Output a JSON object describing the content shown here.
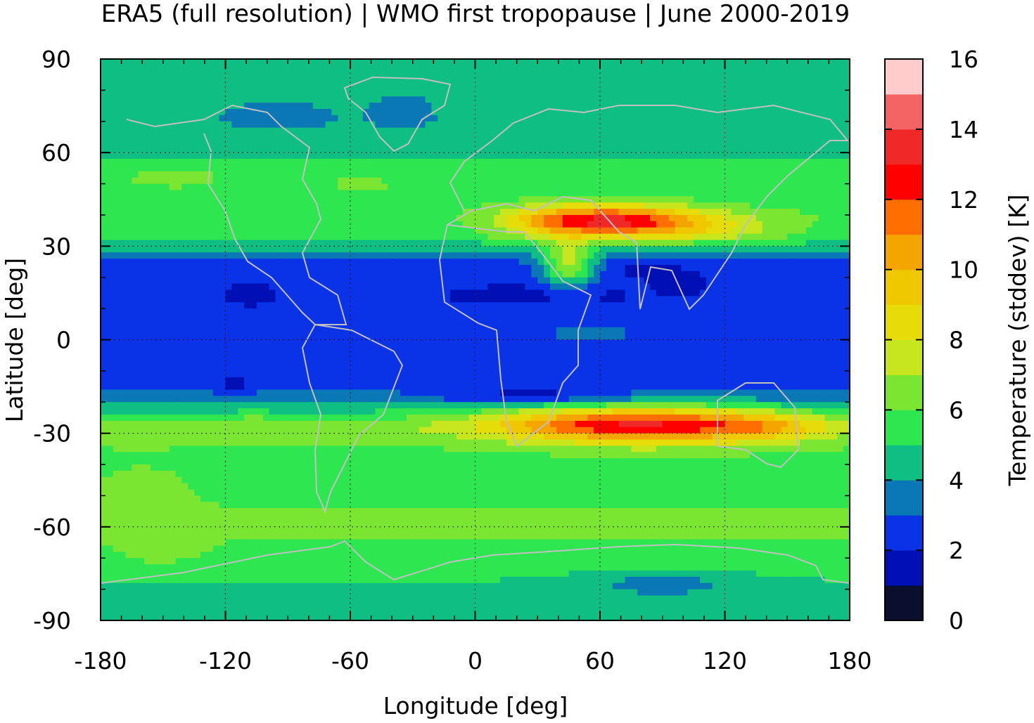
{
  "chart_data": {
    "type": "heatmap",
    "title": "ERA5 (full resolution) | WMO first tropopause | June 2000-2019",
    "xlabel": "Longitude [deg]",
    "ylabel": "Latitude [deg]",
    "colorbar_label": "Temperature (stddev) [K]",
    "xlim": [
      -180,
      180
    ],
    "ylim": [
      -90,
      90
    ],
    "x_ticks": [
      -180,
      -120,
      -60,
      0,
      60,
      120,
      180
    ],
    "y_ticks": [
      90,
      60,
      30,
      0,
      -30,
      -60,
      -90
    ],
    "colorbar_range": [
      0,
      16
    ],
    "colorbar_ticks": [
      0,
      2,
      4,
      6,
      8,
      10,
      12,
      14,
      16
    ],
    "grid": true,
    "colorbar_placement": "right",
    "coastlines_color": "#c0c0c0",
    "levels": [
      {
        "min": 0,
        "max": 1,
        "color": "#0b0f2e"
      },
      {
        "min": 1,
        "max": 2,
        "color": "#0010b4"
      },
      {
        "min": 2,
        "max": 3,
        "color": "#0a32e6"
      },
      {
        "min": 3,
        "max": 4,
        "color": "#0a78b4"
      },
      {
        "min": 4,
        "max": 5,
        "color": "#0fbe82"
      },
      {
        "min": 5,
        "max": 6,
        "color": "#2ee650"
      },
      {
        "min": 6,
        "max": 7,
        "color": "#7ae632"
      },
      {
        "min": 7,
        "max": 8,
        "color": "#c8e61e"
      },
      {
        "min": 8,
        "max": 9,
        "color": "#e6dc0a"
      },
      {
        "min": 9,
        "max": 10,
        "color": "#f0c800"
      },
      {
        "min": 10,
        "max": 11,
        "color": "#f5a500"
      },
      {
        "min": 11,
        "max": 12,
        "color": "#ff6e00"
      },
      {
        "min": 12,
        "max": 13,
        "color": "#ff0000"
      },
      {
        "min": 13,
        "max": 14,
        "color": "#f02828"
      },
      {
        "min": 14,
        "max": 15,
        "color": "#f56464"
      },
      {
        "min": 15,
        "max": 16,
        "color": "#ffcccc"
      }
    ],
    "zonal_profile": {
      "lat": [
        -90,
        -82,
        -75,
        -68,
        -60,
        -50,
        -40,
        -32,
        -28,
        -24,
        -20,
        -12,
        -5,
        0,
        5,
        12,
        18,
        24,
        28,
        33,
        40,
        48,
        55,
        62,
        70,
        80,
        90
      ],
      "value": [
        4.5,
        4.6,
        5.2,
        5.6,
        6.3,
        5.8,
        5.5,
        6.1,
        6.8,
        5.4,
        3.6,
        2.4,
        2.2,
        2.3,
        2.2,
        2.1,
        2.3,
        2.6,
        3.8,
        5.6,
        5.9,
        5.4,
        5.2,
        4.7,
        4.3,
        4.6,
        4.7
      ]
    },
    "anomalies": [
      {
        "lon": 88,
        "lat": -27,
        "peak": 12.5,
        "dlon": 55,
        "dlat": 6
      },
      {
        "lon": 140,
        "lat": -28,
        "peak": 8.8,
        "dlon": 28,
        "dlat": 5
      },
      {
        "lon": 35,
        "lat": -27,
        "peak": 8.5,
        "dlon": 45,
        "dlat": 6
      },
      {
        "lon": 68,
        "lat": 38,
        "peak": 12.5,
        "dlon": 35,
        "dlat": 5
      },
      {
        "lon": 35,
        "lat": 38,
        "peak": 8.5,
        "dlon": 25,
        "dlat": 5
      },
      {
        "lon": 110,
        "lat": 36,
        "peak": 8.0,
        "dlon": 35,
        "dlat": 5
      },
      {
        "lon": 45,
        "lat": 24,
        "peak": 7.2,
        "dlon": 12,
        "dlat": 7
      },
      {
        "lon": 80,
        "lat": 24,
        "peak": 1.7,
        "dlon": 15,
        "dlat": 4
      },
      {
        "lon": 100,
        "lat": 20,
        "peak": 1.8,
        "dlon": 16,
        "dlat": 5
      },
      {
        "lon": -108,
        "lat": 15,
        "peak": 1.5,
        "dlon": 12,
        "dlat": 3
      },
      {
        "lon": 30,
        "lat": 15,
        "peak": 1.6,
        "dlon": 40,
        "dlat": 3
      },
      {
        "lon": 30,
        "lat": -18,
        "peak": 1.6,
        "dlon": 45,
        "dlat": 3
      },
      {
        "lon": 55,
        "lat": 2,
        "peak": 3.5,
        "dlon": 25,
        "dlat": 4
      },
      {
        "lon": -115,
        "lat": -15,
        "peak": 1.8,
        "dlon": 10,
        "dlat": 3
      },
      {
        "lon": -107,
        "lat": -23,
        "peak": 5.8,
        "dlon": 5,
        "dlat": 4
      },
      {
        "lon": -95,
        "lat": 72,
        "peak": 3.6,
        "dlon": 30,
        "dlat": 6
      },
      {
        "lon": -35,
        "lat": 74,
        "peak": 3.6,
        "dlon": 18,
        "dlat": 8
      },
      {
        "lon": 90,
        "lat": -78,
        "peak": 3.6,
        "dlon": 40,
        "dlat": 4
      },
      {
        "lon": -145,
        "lat": 52,
        "peak": 6.4,
        "dlon": 30,
        "dlat": 4
      },
      {
        "lon": -55,
        "lat": 50,
        "peak": 6.2,
        "dlon": 25,
        "dlat": 4
      },
      {
        "lon": -160,
        "lat": -47,
        "peak": 6.4,
        "dlon": 25,
        "dlat": 10
      },
      {
        "lon": -150,
        "lat": -68,
        "peak": 6.4,
        "dlon": 25,
        "dlat": 6
      }
    ]
  }
}
